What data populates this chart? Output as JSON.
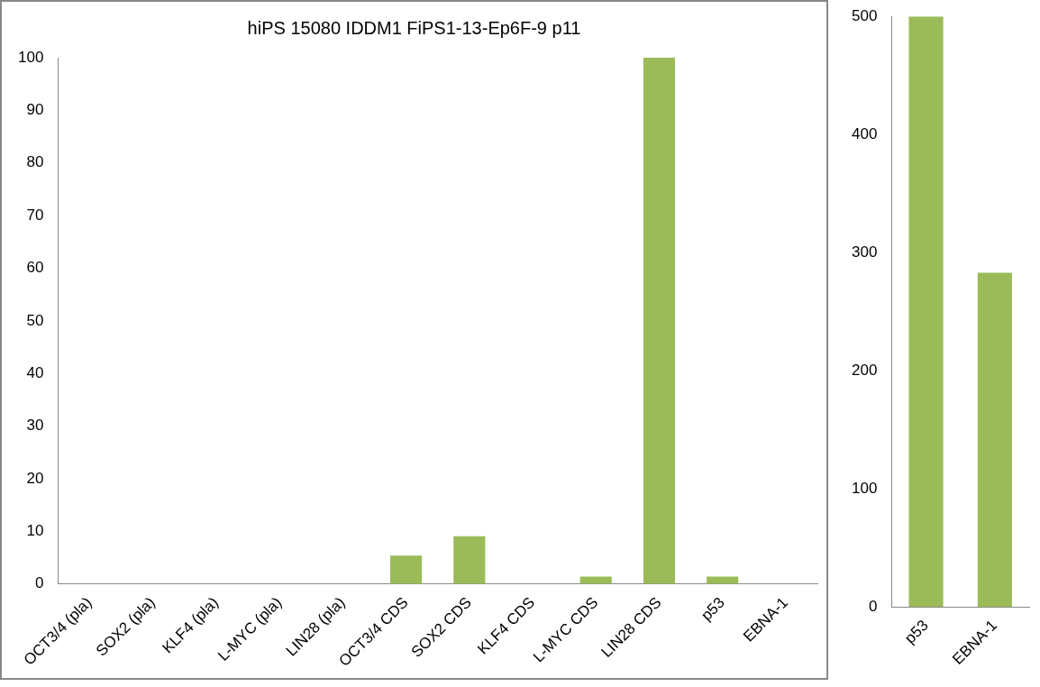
{
  "chart_data": [
    {
      "type": "bar",
      "title": "hiPS 15080 IDDM1 FiPS1-13-Ep6F-9 p11",
      "categories": [
        "OCT3/4 (pla)",
        "SOX2 (pla)",
        "KLF4 (pla)",
        "L-MYC (pla)",
        "LIN28 (pla)",
        "OCT3/4 CDS",
        "SOX2 CDS",
        "KLF4 CDS",
        "L-MYC CDS",
        "LIN28 CDS",
        "p53",
        "EBNA-1"
      ],
      "values": [
        0,
        0,
        0,
        0,
        0,
        5.4,
        9.1,
        0,
        1.4,
        100,
        1.4,
        0
      ],
      "color": "#9bbb59",
      "ylim": [
        0,
        100
      ],
      "yticks": [
        0,
        10,
        20,
        30,
        40,
        50,
        60,
        70,
        80,
        90,
        100
      ],
      "grid": false,
      "legend": false
    },
    {
      "type": "bar",
      "categories": [
        "p53",
        "EBNA-1"
      ],
      "values": [
        500,
        283
      ],
      "color": "#9bbb59",
      "ylim": [
        0,
        500
      ],
      "yticks": [
        0,
        100,
        200,
        300,
        400,
        500
      ],
      "grid": false,
      "legend": false
    }
  ]
}
